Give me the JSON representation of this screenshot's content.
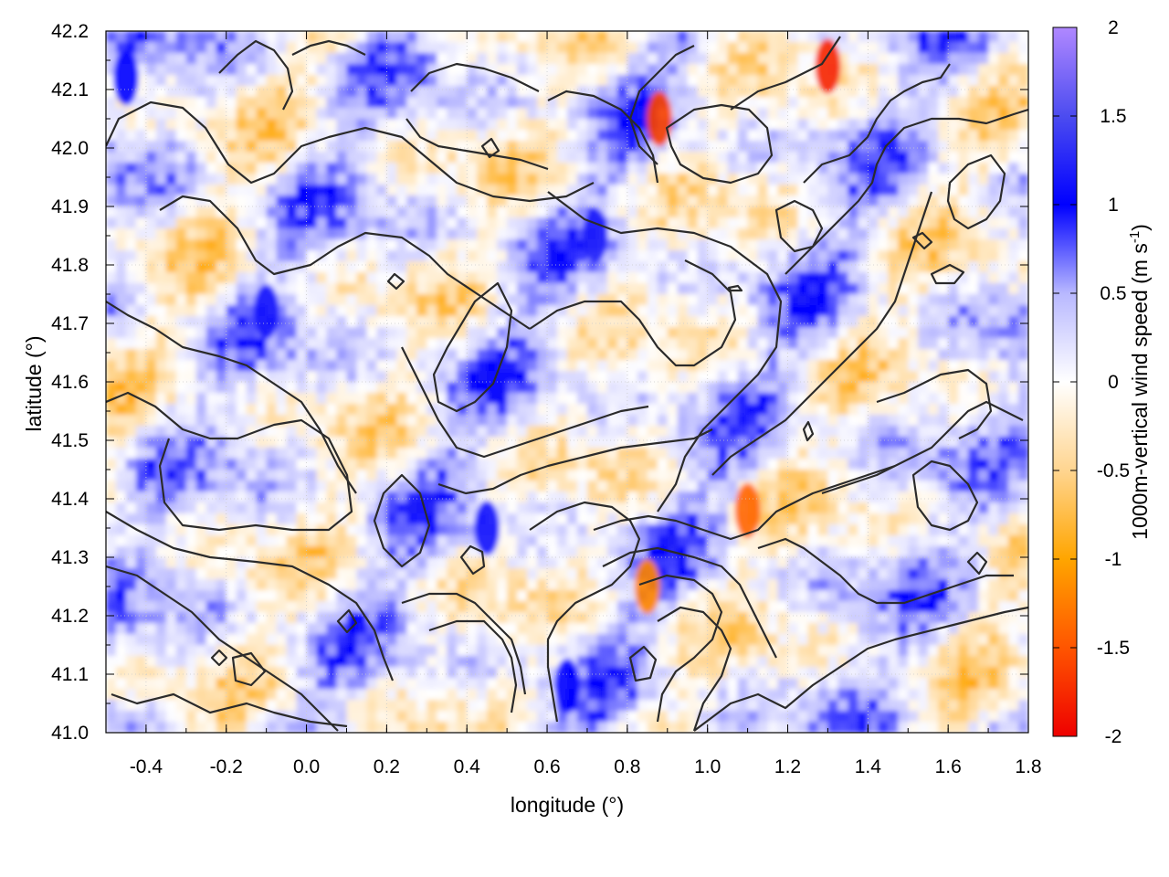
{
  "chart_data": {
    "type": "heatmap",
    "title": "",
    "xlabel": "longitude (°)",
    "ylabel": "latitude (°)",
    "xlim": [
      -0.5,
      1.8
    ],
    "ylim": [
      41.0,
      42.2
    ],
    "xticks": [
      {
        "value": -0.4,
        "label": "-0.4"
      },
      {
        "value": -0.2,
        "label": "-0.2"
      },
      {
        "value": 0.0,
        "label": "0.0"
      },
      {
        "value": 0.2,
        "label": "0.2"
      },
      {
        "value": 0.4,
        "label": "0.4"
      },
      {
        "value": 0.6,
        "label": "0.6"
      },
      {
        "value": 0.8,
        "label": "0.8"
      },
      {
        "value": 1.0,
        "label": "1.0"
      },
      {
        "value": 1.2,
        "label": "1.2"
      },
      {
        "value": 1.4,
        "label": "1.4"
      },
      {
        "value": 1.6,
        "label": "1.6"
      },
      {
        "value": 1.8,
        "label": "1.8"
      }
    ],
    "yticks": [
      {
        "value": 41.0,
        "label": "41.0"
      },
      {
        "value": 41.1,
        "label": "41.1"
      },
      {
        "value": 41.2,
        "label": "41.2"
      },
      {
        "value": 41.3,
        "label": "41.3"
      },
      {
        "value": 41.4,
        "label": "41.4"
      },
      {
        "value": 41.5,
        "label": "41.5"
      },
      {
        "value": 41.6,
        "label": "41.6"
      },
      {
        "value": 41.7,
        "label": "41.7"
      },
      {
        "value": 41.8,
        "label": "41.8"
      },
      {
        "value": 41.9,
        "label": "41.9"
      },
      {
        "value": 42.0,
        "label": "42.0"
      },
      {
        "value": 42.1,
        "label": "42.1"
      },
      {
        "value": 42.2,
        "label": "42.2"
      }
    ],
    "grid": true,
    "colorbar": {
      "label_main": "1000m-vertical wind speed (m s",
      "label_sup": "-1",
      "label_close": ")",
      "range": [
        -2,
        2
      ],
      "ticks": [
        {
          "value": 2,
          "label": "2"
        },
        {
          "value": 1.5,
          "label": "1.5"
        },
        {
          "value": 1,
          "label": "1"
        },
        {
          "value": 0.5,
          "label": "0.5"
        },
        {
          "value": 0,
          "label": "0"
        },
        {
          "value": -0.5,
          "label": "-0.5"
        },
        {
          "value": -1,
          "label": "-1"
        },
        {
          "value": -1.5,
          "label": "-1.5"
        },
        {
          "value": -2,
          "label": "-2"
        }
      ],
      "colors": [
        {
          "value": -2,
          "color": "#ee0000"
        },
        {
          "value": -1.5,
          "color": "#ff5500"
        },
        {
          "value": -1,
          "color": "#ffa500"
        },
        {
          "value": -0.5,
          "color": "#ffd590"
        },
        {
          "value": 0,
          "color": "#ffffff"
        },
        {
          "value": 0.5,
          "color": "#b8b8ff"
        },
        {
          "value": 1,
          "color": "#0000ff"
        },
        {
          "value": 1.5,
          "color": "#4c4cf0"
        },
        {
          "value": 2,
          "color": "#b088ff"
        }
      ]
    },
    "field_description": "vertical wind speed field with black terrain-height contour lines",
    "features": [
      {
        "lon": 0.72,
        "lat": 41.85,
        "value": 1.2
      },
      {
        "lon": 0.88,
        "lat": 42.05,
        "value": -1.6
      },
      {
        "lon": 1.3,
        "lat": 42.14,
        "value": -1.8
      },
      {
        "lon": 0.45,
        "lat": 41.35,
        "value": 1.1
      },
      {
        "lon": 0.85,
        "lat": 41.25,
        "value": -1.2
      },
      {
        "lon": 1.1,
        "lat": 41.38,
        "value": -1.4
      },
      {
        "lon": -0.45,
        "lat": 42.12,
        "value": 1.0
      },
      {
        "lon": -0.1,
        "lat": 41.72,
        "value": 1.1
      },
      {
        "lon": 0.65,
        "lat": 41.08,
        "value": 1.0
      }
    ]
  }
}
